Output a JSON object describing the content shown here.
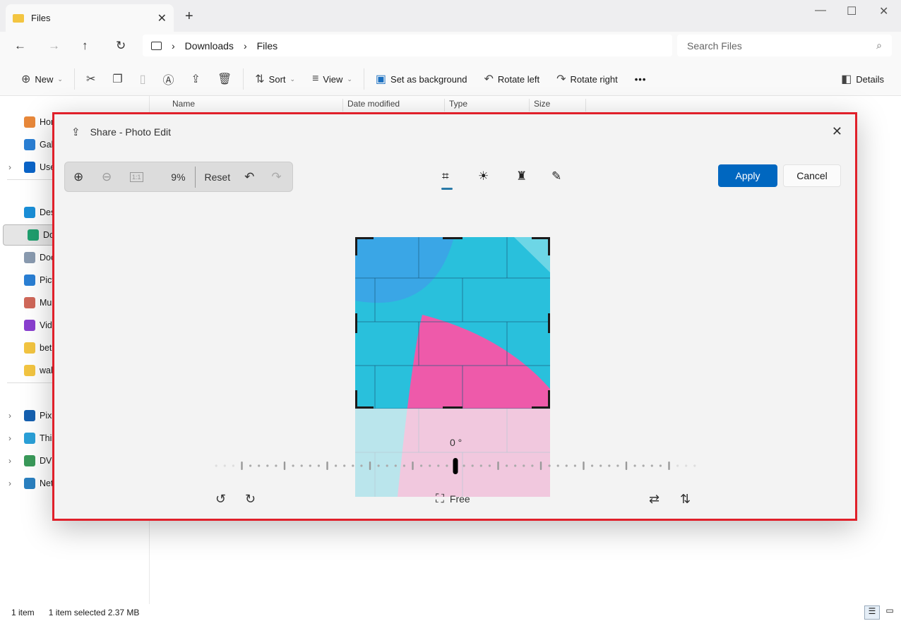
{
  "window": {
    "tab_title": "Files",
    "new_tab": "+",
    "minimize": "—",
    "maximize": "☐",
    "close": "✕"
  },
  "address": {
    "breadcrumb": [
      "Downloads",
      "Files"
    ],
    "search_placeholder": "Search Files"
  },
  "commands": {
    "new": "New",
    "sort": "Sort",
    "view": "View",
    "set_background": "Set as background",
    "rotate_left": "Rotate left",
    "rotate_right": "Rotate right",
    "more": "•••",
    "details": "Details"
  },
  "columns": [
    "Name",
    "Date modified",
    "Type",
    "Size"
  ],
  "sidebar": {
    "items": [
      {
        "label": "Home",
        "icon": "home-icon",
        "color": "#e8883a"
      },
      {
        "label": "Gal",
        "icon": "gallery-icon",
        "color": "#2a7fd4"
      },
      {
        "label": "Use",
        "icon": "onedrive-icon",
        "color": "#0a64c8",
        "expand": true
      },
      {
        "label": "Des",
        "icon": "desktop-icon",
        "color": "#1a8fd8"
      },
      {
        "label": "Dov",
        "icon": "download-icon",
        "color": "#1f9e6e",
        "selected": true
      },
      {
        "label": "Doc",
        "icon": "documents-icon",
        "color": "#8a9bb0"
      },
      {
        "label": "Pict",
        "icon": "pictures-icon",
        "color": "#2a7fd4"
      },
      {
        "label": "Mu",
        "icon": "music-icon",
        "color": "#d0685a"
      },
      {
        "label": "Vid",
        "icon": "videos-icon",
        "color": "#8a3fd0"
      },
      {
        "label": "bet",
        "icon": "folder-icon",
        "color": "#f3c541"
      },
      {
        "label": "wal",
        "icon": "folder-icon",
        "color": "#f3c541"
      },
      {
        "label": "Pixe",
        "icon": "phone-icon",
        "color": "#1560b0",
        "expand": true
      },
      {
        "label": "Thi",
        "icon": "computer-icon",
        "color": "#2aa0d8",
        "expand": true
      },
      {
        "label": "DVI",
        "icon": "dvd-icon",
        "color": "#3a9a5a",
        "expand": true
      },
      {
        "label": "Net",
        "icon": "network-icon",
        "color": "#2a80c0",
        "expand": true
      }
    ]
  },
  "status": {
    "count": "1 item",
    "selected": "1 item selected  2.37 MB"
  },
  "dialog": {
    "title": "Share - Photo Edit",
    "zoom": "9%",
    "reset": "Reset",
    "apply": "Apply",
    "cancel": "Cancel",
    "angle": "0 °",
    "rotation_degrees": 0,
    "aspect": "Free",
    "active_tool": "crop",
    "accent": "#0067c0",
    "highlight_border": "#e0202a"
  }
}
